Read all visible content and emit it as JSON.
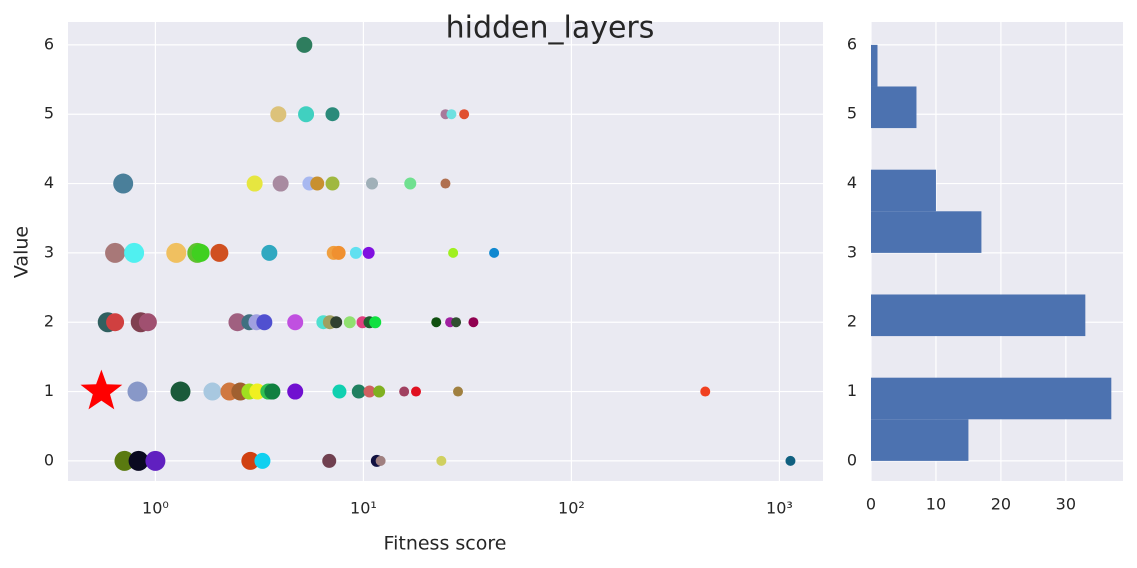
{
  "chart_data": [
    {
      "type": "scatter",
      "title": "hidden_layers",
      "xlabel": "Fitness score",
      "ylabel": "Value",
      "xscale": "log",
      "xlim": [
        0.38,
        1620
      ],
      "ylim": [
        -0.29,
        6.33
      ],
      "grid": true,
      "xticks": [
        {
          "value": 1,
          "label": "10⁰"
        },
        {
          "value": 10,
          "label": "10¹"
        },
        {
          "value": 100,
          "label": "10²"
        },
        {
          "value": 1000,
          "label": "10³"
        }
      ],
      "yticks": [
        0,
        1,
        2,
        3,
        4,
        5,
        6
      ],
      "x": [
        5.2,
        3.9,
        5.3,
        7.1,
        24.8,
        26.5,
        30.5,
        0.7,
        3.0,
        4.0,
        5.5,
        6.0,
        7.1,
        11.0,
        16.8,
        24.8,
        0.64,
        0.79,
        1.26,
        1.59,
        1.65,
        2.03,
        3.53,
        7.2,
        7.6,
        9.2,
        10.6,
        27.0,
        42.5,
        0.59,
        0.64,
        0.85,
        0.92,
        2.48,
        2.83,
        3.06,
        3.34,
        4.7,
        6.42,
        6.9,
        7.4,
        8.6,
        9.9,
        10.7,
        11.4,
        22.4,
        26.1,
        27.9,
        33.8,
        0.82,
        1.32,
        1.88,
        2.27,
        2.56,
        2.83,
        3.09,
        3.49,
        3.65,
        4.7,
        7.67,
        9.5,
        10.7,
        11.9,
        15.7,
        17.9,
        28.5,
        440,
        0.71,
        0.83,
        1.0,
        2.86,
        3.27,
        6.85,
        11.6,
        12.1,
        23.7,
        1130
      ],
      "values": [
        6,
        5,
        5,
        5,
        5,
        5,
        5,
        4,
        4,
        4,
        4,
        4,
        4,
        4,
        4,
        4,
        3,
        3,
        3,
        3,
        3,
        3,
        3,
        3,
        3,
        3,
        3,
        3,
        3,
        2,
        2,
        2,
        2,
        2,
        2,
        2,
        2,
        2,
        2,
        2,
        2,
        2,
        2,
        2,
        2,
        2,
        2,
        2,
        2,
        1,
        1,
        1,
        1,
        1,
        1,
        1,
        1,
        1,
        1,
        1,
        1,
        1,
        1,
        1,
        1,
        1,
        1,
        0,
        0,
        0,
        0,
        0,
        0,
        0,
        0,
        0,
        0
      ],
      "sizes": [
        8,
        8,
        8,
        7,
        5,
        5,
        5,
        10,
        8,
        8,
        7,
        7,
        7,
        6,
        6,
        5,
        10,
        10,
        10,
        10,
        9,
        9,
        8,
        7,
        7,
        6,
        6,
        5,
        5,
        10,
        9,
        10,
        9,
        9,
        8,
        8,
        8,
        8,
        7,
        7,
        6,
        6,
        6,
        6,
        6,
        5,
        5,
        5,
        5,
        10,
        10,
        9,
        9,
        9,
        8,
        8,
        8,
        8,
        8,
        7,
        7,
        6,
        6,
        5,
        5,
        5,
        5,
        10,
        10,
        10,
        9,
        8,
        7,
        6,
        5,
        5,
        5
      ],
      "colors": [
        "#2e7d5e",
        "#dcc27a",
        "#40d0c0",
        "#2a8a7a",
        "#a87a9a",
        "#6ee0e0",
        "#e05030",
        "#4a7f9a",
        "#e6e640",
        "#a88aa0",
        "#a8b8f0",
        "#c89030",
        "#a0b840",
        "#a0b0b8",
        "#70e090",
        "#b07050",
        "#a87878",
        "#50f0f0",
        "#f0c060",
        "#60c030",
        "#40d020",
        "#d05020",
        "#30a8c0",
        "#f0a040",
        "#f09030",
        "#60e0f0",
        "#8010e0",
        "#a0f020",
        "#1088d0",
        "#306060",
        "#d04040",
        "#804050",
        "#a05070",
        "#a06080",
        "#407080",
        "#a0a0e0",
        "#5050d0",
        "#c050e0",
        "#50e0d0",
        "#a0a060",
        "#304030",
        "#90e070",
        "#e04080",
        "#206030",
        "#10e040",
        "#105010",
        "#a020a0",
        "#305030",
        "#900050",
        "#8898c8",
        "#1a5a3a",
        "#a8c8e0",
        "#d07840",
        "#a06030",
        "#a0e020",
        "#f0f020",
        "#30c050",
        "#108040",
        "#7010d0",
        "#10d0b0",
        "#208060",
        "#d06060",
        "#80b020",
        "#a04060",
        "#e01020",
        "#a08040",
        "#f04020",
        "#5a7a10",
        "#0a0a20",
        "#6020c0",
        "#d04010",
        "#10d0f0",
        "#704050",
        "#101040",
        "#a08080",
        "#d0d060",
        "#106080"
      ],
      "best": {
        "x": 0.55,
        "value": 1,
        "color": "#ff0000"
      }
    },
    {
      "type": "histogram",
      "orientation": "horizontal",
      "color": "#4c72b0",
      "grid": true,
      "bins": [
        0,
        0.6,
        1.2,
        1.8,
        2.4,
        3.0,
        3.6,
        4.2,
        4.8,
        5.4,
        6.0
      ],
      "counts": [
        15,
        37,
        0,
        33,
        0,
        17,
        10,
        0,
        7,
        1
      ],
      "xlim": [
        0,
        38.8
      ],
      "xticks": [
        0,
        10,
        20,
        30
      ],
      "ylim": [
        -0.29,
        6.33
      ],
      "yticks": [
        0,
        1,
        2,
        3,
        4,
        5,
        6
      ]
    }
  ]
}
